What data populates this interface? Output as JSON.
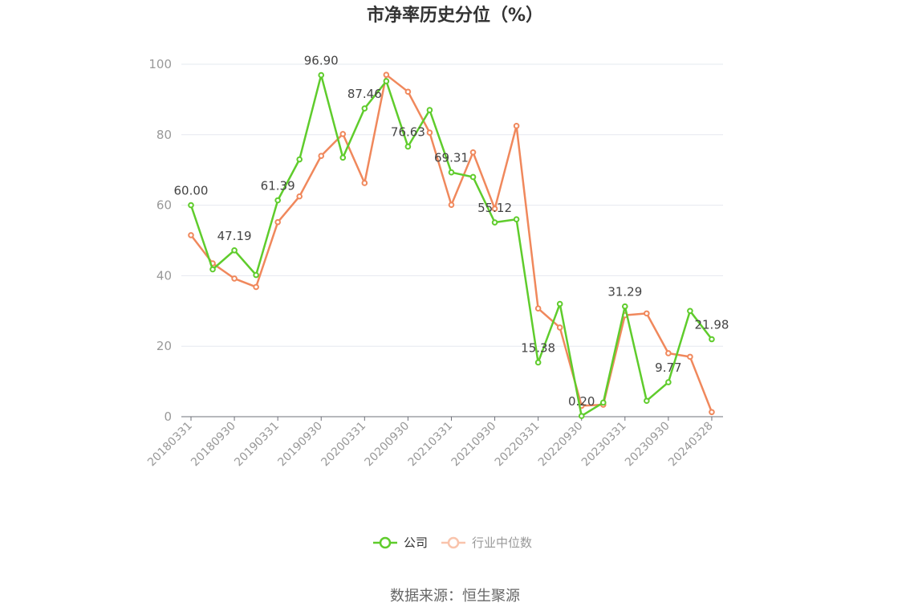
{
  "chart_data": {
    "type": "line",
    "title": "市净率历史分位（%）",
    "ylim": [
      0,
      100
    ],
    "yticks": [
      0,
      20,
      40,
      60,
      80,
      100
    ],
    "x_tick_labels": [
      "20180331",
      "20180930",
      "20190331",
      "20190930",
      "20200331",
      "20200930",
      "20210331",
      "20210930",
      "20220331",
      "20220930",
      "20230331",
      "20230930",
      "20240328"
    ],
    "grid": true,
    "legend_position": "bottom-center",
    "series": [
      {
        "name": "公司",
        "color": "#5fcc2c",
        "values": [
          60.0,
          41.8,
          47.19,
          40.2,
          61.39,
          73.0,
          96.9,
          73.5,
          87.46,
          95.2,
          76.63,
          87.0,
          69.31,
          68.0,
          55.12,
          56.0,
          15.38,
          32.0,
          0.2,
          4.0,
          31.29,
          4.5,
          9.77,
          30.0,
          21.98
        ],
        "labels": [
          "60.00",
          "",
          "47.19",
          "",
          "61.39",
          "",
          "96.90",
          "",
          "87.46",
          "",
          "76.63",
          "",
          "69.31",
          "",
          "55.12",
          "",
          "15.38",
          "",
          "0.20",
          "",
          "31.29",
          "",
          "9.77",
          "",
          "21.98"
        ]
      },
      {
        "name": "行业中位数",
        "color": "#f0885c",
        "values": [
          51.5,
          43.5,
          39.2,
          36.8,
          55.2,
          62.5,
          74.0,
          80.2,
          66.3,
          97.0,
          92.2,
          80.6,
          60.1,
          75.0,
          59.0,
          82.5,
          30.7,
          25.3,
          3.1,
          3.4,
          28.8,
          29.3,
          18.0,
          17.0,
          1.3
        ]
      }
    ]
  },
  "source_text": "数据来源：恒生聚源"
}
